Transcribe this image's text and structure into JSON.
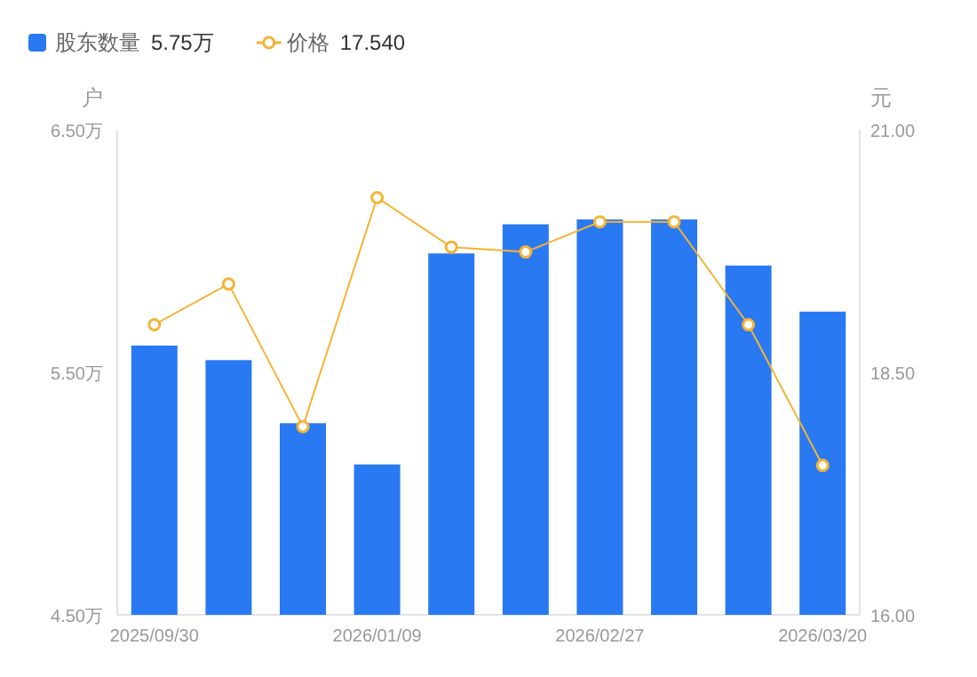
{
  "chart_data": {
    "type": "bar",
    "categories": [
      "2025/09/30",
      null,
      null,
      "2026/01/09",
      null,
      null,
      "2026/02/27",
      null,
      null,
      "2026/03/20"
    ],
    "series": [
      {
        "name": "股东数量",
        "color": "#2979f2",
        "values": [
          5.61,
          5.55,
          5.29,
          5.12,
          5.99,
          6.11,
          6.13,
          6.13,
          5.94,
          5.75
        ]
      },
      {
        "name": "价格",
        "type": "line",
        "axis": "y2",
        "color": "#f5b335",
        "marker": "circle",
        "values": [
          18.99,
          19.41,
          17.94,
          20.3,
          19.79,
          19.74,
          20.05,
          20.05,
          18.99,
          17.54
        ]
      }
    ],
    "annotations": [
      "5.75万",
      "17.540"
    ],
    "ylabel": "户",
    "y2label": "元",
    "ylim": [
      4.5,
      6.5
    ],
    "yticks": [
      {
        "value": 4.5,
        "label": "4.50万"
      },
      {
        "value": 5.5,
        "label": "5.50万"
      },
      {
        "value": 6.5,
        "label": "6.50万"
      }
    ],
    "y2lim": [
      16,
      21
    ],
    "y2ticks": [
      {
        "value": 16,
        "label": "16.00"
      },
      {
        "value": 18.5,
        "label": "18.50"
      },
      {
        "value": 21,
        "label": "21.00"
      }
    ],
    "legend": "top left",
    "grid": false
  }
}
